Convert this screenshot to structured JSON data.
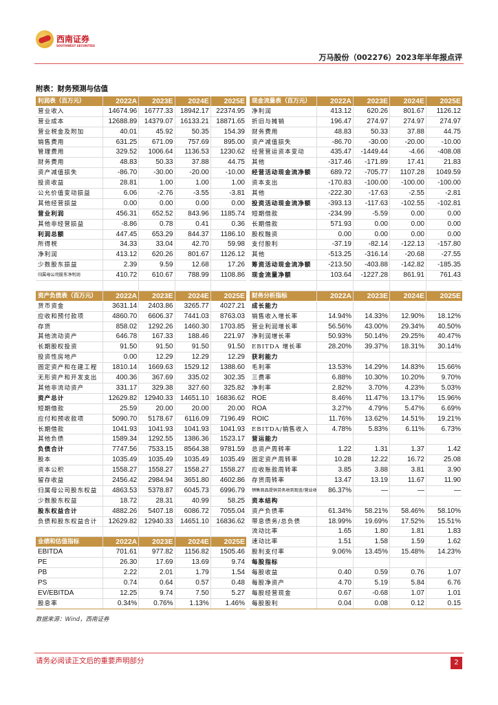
{
  "header": {
    "logo_cn": "西南证券",
    "logo_en": "SOUTHWEST SECURITIES",
    "doc_title": "万马股份（002276）2023年半年报点评",
    "appendix_title": "附表：财务预测与估值"
  },
  "left_sections": [
    {
      "title": "利润表（百万元）",
      "columns": [
        "2022A",
        "2023E",
        "2024E",
        "2025E"
      ],
      "rows": [
        {
          "label": "营业收入",
          "values": [
            "14674.96",
            "16777.33",
            "18942.17",
            "22374.95"
          ]
        },
        {
          "label": "营业成本",
          "values": [
            "12688.89",
            "14379.07",
            "16133.21",
            "18871.65"
          ]
        },
        {
          "label": "营业税金及附加",
          "values": [
            "40.01",
            "45.92",
            "50.35",
            "154.39"
          ]
        },
        {
          "label": "销售费用",
          "values": [
            "631.25",
            "671.09",
            "757.69",
            "895.00"
          ]
        },
        {
          "label": "管理费用",
          "values": [
            "329.52",
            "1006.64",
            "1136.53",
            "1230.62"
          ]
        },
        {
          "label": "财务费用",
          "values": [
            "48.83",
            "50.33",
            "37.88",
            "44.75"
          ]
        },
        {
          "label": "资产减值损失",
          "values": [
            "-86.70",
            "-30.00",
            "-20.00",
            "-10.00"
          ]
        },
        {
          "label": "投资收益",
          "values": [
            "28.81",
            "1.00",
            "1.00",
            "1.00"
          ]
        },
        {
          "label": "公允价值变动损益",
          "values": [
            "6.06",
            "-2.76",
            "-3.55",
            "-3.81"
          ]
        },
        {
          "label": "其他经营损益",
          "values": [
            "0.00",
            "0.00",
            "0.00",
            "0.00"
          ]
        },
        {
          "label": "营业利润",
          "values": [
            "456.31",
            "652.52",
            "843.96",
            "1185.74"
          ],
          "bold": true
        },
        {
          "label": "其他非经营损益",
          "values": [
            "-8.86",
            "0.78",
            "0.41",
            "0.36"
          ]
        },
        {
          "label": "利润总额",
          "values": [
            "447.45",
            "653.29",
            "844.37",
            "1186.10"
          ],
          "bold": true
        },
        {
          "label": "所得税",
          "values": [
            "34.33",
            "33.04",
            "42.70",
            "59.98"
          ]
        },
        {
          "label": "净利润",
          "values": [
            "413.12",
            "620.26",
            "801.67",
            "1126.12"
          ]
        },
        {
          "label": "少数股东损益",
          "values": [
            "2.39",
            "9.59",
            "12.68",
            "17.26"
          ]
        },
        {
          "label": "归属母公司股东净利润",
          "values": [
            "410.72",
            "610.67",
            "788.99",
            "1108.86"
          ],
          "small": true
        }
      ]
    },
    {
      "title": "资产负债表（百万元）",
      "columns": [
        "2022A",
        "2023E",
        "2024E",
        "2025E"
      ],
      "rows": [
        {
          "label": "货币资金",
          "values": [
            "3631.14",
            "2403.86",
            "3265.77",
            "4027.21"
          ]
        },
        {
          "label": "应收和预付款项",
          "values": [
            "4860.70",
            "6606.37",
            "7441.03",
            "8763.03"
          ]
        },
        {
          "label": "存货",
          "values": [
            "858.02",
            "1292.26",
            "1460.30",
            "1703.85"
          ]
        },
        {
          "label": "其他流动资产",
          "values": [
            "646.78",
            "167.33",
            "188.46",
            "221.97"
          ]
        },
        {
          "label": "长期股权投资",
          "values": [
            "91.50",
            "91.50",
            "91.50",
            "91.50"
          ]
        },
        {
          "label": "投资性房地产",
          "values": [
            "0.00",
            "12.29",
            "12.29",
            "12.29"
          ]
        },
        {
          "label": "固定资产和在建工程",
          "values": [
            "1810.14",
            "1669.63",
            "1529.12",
            "1388.60"
          ]
        },
        {
          "label": "无形资产和开发支出",
          "values": [
            "400.36",
            "367.69",
            "335.02",
            "302.35"
          ]
        },
        {
          "label": "其他非流动资产",
          "values": [
            "331.17",
            "329.38",
            "327.60",
            "325.82"
          ]
        },
        {
          "label": "资产总计",
          "values": [
            "12629.82",
            "12940.33",
            "14651.10",
            "16836.62"
          ],
          "bold": true
        },
        {
          "label": "短期借款",
          "values": [
            "25.59",
            "20.00",
            "20.00",
            "20.00"
          ]
        },
        {
          "label": "应付和预收款项",
          "values": [
            "5090.70",
            "5178.67",
            "6116.09",
            "7196.49"
          ]
        },
        {
          "label": "长期借款",
          "values": [
            "1041.93",
            "1041.93",
            "1041.93",
            "1041.93"
          ]
        },
        {
          "label": "其他负债",
          "values": [
            "1589.34",
            "1292.55",
            "1386.36",
            "1523.17"
          ]
        },
        {
          "label": "负债合计",
          "values": [
            "7747.56",
            "7533.15",
            "8564.38",
            "9781.59"
          ],
          "bold": true
        },
        {
          "label": "股本",
          "values": [
            "1035.49",
            "1035.49",
            "1035.49",
            "1035.49"
          ]
        },
        {
          "label": "资本公积",
          "values": [
            "1558.27",
            "1558.27",
            "1558.27",
            "1558.27"
          ]
        },
        {
          "label": "留存收益",
          "values": [
            "2456.42",
            "2984.94",
            "3651.80",
            "4602.86"
          ]
        },
        {
          "label": "归属母公司股东权益",
          "values": [
            "4863.53",
            "5378.87",
            "6045.73",
            "6996.79"
          ]
        },
        {
          "label": "少数股东权益",
          "values": [
            "18.72",
            "28.31",
            "40.99",
            "58.25"
          ]
        },
        {
          "label": "股东权益合计",
          "values": [
            "4882.26",
            "5407.18",
            "6086.72",
            "7055.04"
          ],
          "bold": true
        },
        {
          "label": "负债和股东权益合计",
          "values": [
            "12629.82",
            "12940.33",
            "14651.10",
            "16836.62"
          ]
        }
      ]
    },
    {
      "title": "业绩和估值指标",
      "columns": [
        "2022A",
        "2023E",
        "2024E",
        "2025E"
      ],
      "rows": [
        {
          "label": "EBITDA",
          "values": [
            "701.61",
            "977.82",
            "1156.82",
            "1505.46"
          ],
          "latin": true
        },
        {
          "label": "PE",
          "values": [
            "26.30",
            "17.69",
            "13.69",
            "9.74"
          ],
          "latin": true
        },
        {
          "label": "PB",
          "values": [
            "2.22",
            "2.01",
            "1.79",
            "1.54"
          ],
          "latin": true
        },
        {
          "label": "PS",
          "values": [
            "0.74",
            "0.64",
            "0.57",
            "0.48"
          ],
          "latin": true
        },
        {
          "label": "EV/EBITDA",
          "values": [
            "12.25",
            "9.74",
            "7.50",
            "5.27"
          ],
          "latin": true
        },
        {
          "label": "股息率",
          "values": [
            "0.34%",
            "0.76%",
            "1.13%",
            "1.46%"
          ]
        }
      ]
    }
  ],
  "right_sections": [
    {
      "title": "现金流量表（百万元）",
      "columns": [
        "2022A",
        "2023E",
        "2024E",
        "2025E"
      ],
      "rows": [
        {
          "label": "净利润",
          "values": [
            "413.12",
            "620.26",
            "801.67",
            "1126.12"
          ]
        },
        {
          "label": "折旧与摊销",
          "values": [
            "196.47",
            "274.97",
            "274.97",
            "274.97"
          ]
        },
        {
          "label": "财务费用",
          "values": [
            "48.83",
            "50.33",
            "37.88",
            "44.75"
          ]
        },
        {
          "label": "资产减值损失",
          "values": [
            "-86.70",
            "-30.00",
            "-20.00",
            "-10.00"
          ]
        },
        {
          "label": "经营营运资本变动",
          "values": [
            "435.47",
            "-1449.44",
            "-4.66",
            "-408.08"
          ]
        },
        {
          "label": "其他",
          "values": [
            "-317.46",
            "-171.89",
            "17.41",
            "21.83"
          ]
        },
        {
          "label": "经营活动现金流净额",
          "values": [
            "689.72",
            "-705.77",
            "1107.28",
            "1049.59"
          ],
          "bold": true
        },
        {
          "label": "资本支出",
          "values": [
            "-170.83",
            "-100.00",
            "-100.00",
            "-100.00"
          ]
        },
        {
          "label": "其他",
          "values": [
            "-222.30",
            "-17.63",
            "-2.55",
            "-2.81"
          ]
        },
        {
          "label": "投资活动现金流净额",
          "values": [
            "-393.13",
            "-117.63",
            "-102.55",
            "-102.81"
          ],
          "bold": true
        },
        {
          "label": "短期借款",
          "values": [
            "-234.99",
            "-5.59",
            "0.00",
            "0.00"
          ]
        },
        {
          "label": "长期借款",
          "values": [
            "571.93",
            "0.00",
            "0.00",
            "0.00"
          ]
        },
        {
          "label": "股权融资",
          "values": [
            "0.00",
            "0.00",
            "0.00",
            "0.00"
          ]
        },
        {
          "label": "支付股利",
          "values": [
            "-37.19",
            "-82.14",
            "-122.13",
            "-157.80"
          ]
        },
        {
          "label": "其他",
          "values": [
            "-513.25",
            "-316.14",
            "-20.68",
            "-27.55"
          ]
        },
        {
          "label": "筹资活动现金流净额",
          "values": [
            "-213.50",
            "-403.88",
            "-142.82",
            "-185.35"
          ],
          "bold": true
        },
        {
          "label": "现金流量净额",
          "values": [
            "103.64",
            "-1227.28",
            "861.91",
            "761.43"
          ],
          "bold": true
        }
      ]
    },
    {
      "title": "财务分析指标",
      "columns": [
        "2022A",
        "2023E",
        "2024E",
        "2025E"
      ],
      "rows": [
        {
          "label": "成长能力",
          "values": [
            "",
            "",
            "",
            ""
          ],
          "bold": true
        },
        {
          "label": "销售收入增长率",
          "values": [
            "14.94%",
            "14.33%",
            "12.90%",
            "18.12%"
          ]
        },
        {
          "label": "营业利润增长率",
          "values": [
            "56.56%",
            "43.00%",
            "29.34%",
            "40.50%"
          ]
        },
        {
          "label": "净利润增长率",
          "values": [
            "50.93%",
            "50.14%",
            "29.25%",
            "40.47%"
          ]
        },
        {
          "label": "EBITDA 增长率",
          "values": [
            "28.20%",
            "39.37%",
            "18.31%",
            "30.14%"
          ]
        },
        {
          "label": "获利能力",
          "values": [
            "",
            "",
            "",
            ""
          ],
          "bold": true
        },
        {
          "label": "毛利率",
          "values": [
            "13.53%",
            "14.29%",
            "14.83%",
            "15.66%"
          ]
        },
        {
          "label": "三费率",
          "values": [
            "6.88%",
            "10.30%",
            "10.20%",
            "9.70%"
          ]
        },
        {
          "label": "净利率",
          "values": [
            "2.82%",
            "3.70%",
            "4.23%",
            "5.03%"
          ]
        },
        {
          "label": "ROE",
          "values": [
            "8.46%",
            "11.47%",
            "13.17%",
            "15.96%"
          ],
          "latin": true
        },
        {
          "label": "ROA",
          "values": [
            "3.27%",
            "4.79%",
            "5.47%",
            "6.69%"
          ],
          "latin": true
        },
        {
          "label": "ROIC",
          "values": [
            "11.76%",
            "13.62%",
            "14.51%",
            "19.21%"
          ],
          "latin": true
        },
        {
          "label": "EBITDA/销售收入",
          "values": [
            "4.78%",
            "5.83%",
            "6.11%",
            "6.73%"
          ]
        },
        {
          "label": "营运能力",
          "values": [
            "",
            "",
            "",
            ""
          ],
          "bold": true
        },
        {
          "label": "总资产周转率",
          "values": [
            "1.22",
            "1.31",
            "1.37",
            "1.42"
          ]
        },
        {
          "label": "固定资产周转率",
          "values": [
            "10.28",
            "12.22",
            "16.72",
            "25.08"
          ]
        },
        {
          "label": "应收账款周转率",
          "values": [
            "3.85",
            "3.88",
            "3.81",
            "3.90"
          ]
        },
        {
          "label": "存货周转率",
          "values": [
            "13.47",
            "13.19",
            "11.67",
            "11.90"
          ]
        },
        {
          "label": "销售商品提供劳务收到现金/营业收入",
          "values": [
            "86.37%",
            "—",
            "—",
            "—"
          ],
          "small": true
        },
        {
          "label": "资本结构",
          "values": [
            "",
            "",
            "",
            ""
          ],
          "bold": true
        },
        {
          "label": "资产负债率",
          "values": [
            "61.34%",
            "58.21%",
            "58.46%",
            "58.10%"
          ]
        },
        {
          "label": "带息债务/总负债",
          "values": [
            "18.99%",
            "19.69%",
            "17.52%",
            "15.51%"
          ]
        },
        {
          "label": "流动比率",
          "values": [
            "1.65",
            "1.80",
            "1.81",
            "1.83"
          ]
        },
        {
          "label": "速动比率",
          "values": [
            "1.51",
            "1.58",
            "1.59",
            "1.62"
          ]
        },
        {
          "label": "股利支付率",
          "values": [
            "9.06%",
            "13.45%",
            "15.48%",
            "14.23%"
          ]
        },
        {
          "label": "每股指标",
          "values": [
            "",
            "",
            "",
            ""
          ],
          "bold": true
        },
        {
          "label": "每股收益",
          "values": [
            "0.40",
            "0.59",
            "0.76",
            "1.07"
          ]
        },
        {
          "label": "每股净资产",
          "values": [
            "4.70",
            "5.19",
            "5.84",
            "6.76"
          ]
        },
        {
          "label": "每股经营现金",
          "values": [
            "0.67",
            "-0.68",
            "1.07",
            "1.01"
          ]
        },
        {
          "label": "每股股利",
          "values": [
            "0.04",
            "0.08",
            "0.12",
            "0.15"
          ]
        }
      ]
    }
  ],
  "footer": {
    "source": "数据来源：Wind，西南证券",
    "disclaimer": "请务必阅读正文后的重要声明部分",
    "page_number": "2"
  }
}
